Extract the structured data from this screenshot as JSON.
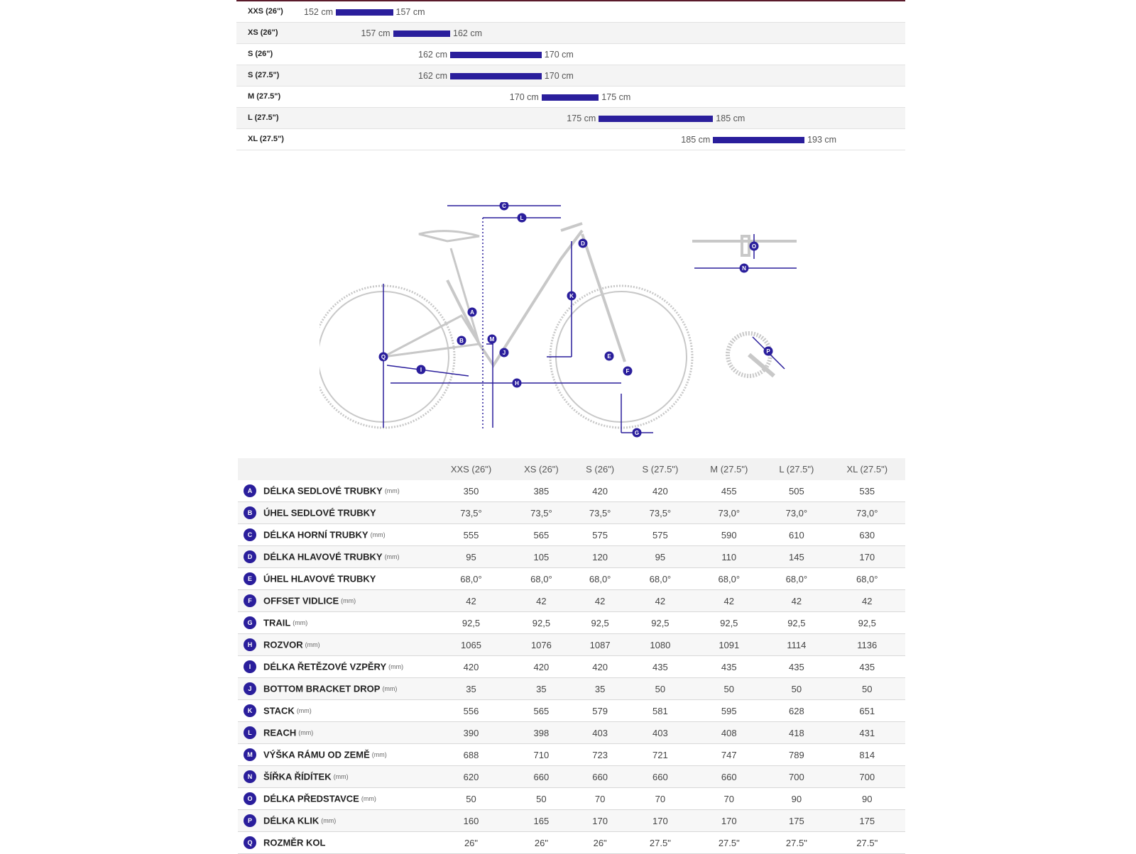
{
  "size_chart": {
    "rows": [
      {
        "size": "XXS (26\")",
        "min": "152 cm",
        "max": "157 cm",
        "min_cm": 152,
        "max_cm": 157
      },
      {
        "size": "XS (26\")",
        "min": "157 cm",
        "max": "162 cm",
        "min_cm": 157,
        "max_cm": 162
      },
      {
        "size": "S (26\")",
        "min": "162 cm",
        "max": "170 cm",
        "min_cm": 162,
        "max_cm": 170
      },
      {
        "size": "S (27.5\")",
        "min": "162 cm",
        "max": "170 cm",
        "min_cm": 162,
        "max_cm": 170
      },
      {
        "size": "M (27.5\")",
        "min": "170 cm",
        "max": "175 cm",
        "min_cm": 170,
        "max_cm": 175
      },
      {
        "size": "L (27.5\")",
        "min": "175 cm",
        "max": "185 cm",
        "min_cm": 175,
        "max_cm": 185
      },
      {
        "size": "XL (27.5\")",
        "min": "185 cm",
        "max": "193 cm",
        "min_cm": 185,
        "max_cm": 193
      }
    ],
    "bar_color": "#2a1e9c"
  },
  "diagram": {
    "markers": [
      "A",
      "B",
      "C",
      "D",
      "E",
      "F",
      "G",
      "H",
      "I",
      "J",
      "K",
      "L",
      "M",
      "N",
      "O",
      "P",
      "Q"
    ],
    "marker_color": "#2a1e9c"
  },
  "geometry_table": {
    "headers": [
      "XXS (26\")",
      "XS (26\")",
      "S (26\")",
      "S (27.5\")",
      "M (27.5\")",
      "L (27.5\")",
      "XL (27.5\")"
    ],
    "rows": [
      {
        "letter": "A",
        "name": "DÉLKA SEDLOVÉ TRUBKY",
        "unit": "(mm)",
        "values": [
          "350",
          "385",
          "420",
          "420",
          "455",
          "505",
          "535"
        ]
      },
      {
        "letter": "B",
        "name": "ÚHEL SEDLOVÉ TRUBKY",
        "unit": "",
        "values": [
          "73,5°",
          "73,5°",
          "73,5°",
          "73,5°",
          "73,0°",
          "73,0°",
          "73,0°"
        ]
      },
      {
        "letter": "C",
        "name": "DÉLKA HORNÍ TRUBKY",
        "unit": "(mm)",
        "values": [
          "555",
          "565",
          "575",
          "575",
          "590",
          "610",
          "630"
        ]
      },
      {
        "letter": "D",
        "name": "DÉLKA HLAVOVÉ TRUBKY",
        "unit": "(mm)",
        "values": [
          "95",
          "105",
          "120",
          "95",
          "110",
          "145",
          "170"
        ]
      },
      {
        "letter": "E",
        "name": "ÚHEL HLAVOVÉ TRUBKY",
        "unit": "",
        "values": [
          "68,0°",
          "68,0°",
          "68,0°",
          "68,0°",
          "68,0°",
          "68,0°",
          "68,0°"
        ]
      },
      {
        "letter": "F",
        "name": "OFFSET VIDLICE",
        "unit": "(mm)",
        "values": [
          "42",
          "42",
          "42",
          "42",
          "42",
          "42",
          "42"
        ]
      },
      {
        "letter": "G",
        "name": "TRAIL",
        "unit": "(mm)",
        "values": [
          "92,5",
          "92,5",
          "92,5",
          "92,5",
          "92,5",
          "92,5",
          "92,5"
        ]
      },
      {
        "letter": "H",
        "name": "ROZVOR",
        "unit": "(mm)",
        "values": [
          "1065",
          "1076",
          "1087",
          "1080",
          "1091",
          "1114",
          "1136"
        ]
      },
      {
        "letter": "I",
        "name": "DÉLKA ŘETĚZOVÉ VZPĚRY",
        "unit": "(mm)",
        "values": [
          "420",
          "420",
          "420",
          "435",
          "435",
          "435",
          "435"
        ]
      },
      {
        "letter": "J",
        "name": "BOTTOM BRACKET DROP",
        "unit": "(mm)",
        "values": [
          "35",
          "35",
          "35",
          "50",
          "50",
          "50",
          "50"
        ]
      },
      {
        "letter": "K",
        "name": "STACK",
        "unit": "(mm)",
        "values": [
          "556",
          "565",
          "579",
          "581",
          "595",
          "628",
          "651"
        ]
      },
      {
        "letter": "L",
        "name": "REACH",
        "unit": "(mm)",
        "values": [
          "390",
          "398",
          "403",
          "403",
          "408",
          "418",
          "431"
        ]
      },
      {
        "letter": "M",
        "name": "VÝŠKA RÁMU OD ZEMĚ",
        "unit": "(mm)",
        "values": [
          "688",
          "710",
          "723",
          "721",
          "747",
          "789",
          "814"
        ]
      },
      {
        "letter": "N",
        "name": "ŠÍŘKA ŘÍDÍTEK",
        "unit": "(mm)",
        "values": [
          "620",
          "660",
          "660",
          "660",
          "660",
          "700",
          "700"
        ]
      },
      {
        "letter": "O",
        "name": "DÉLKA PŘEDSTAVCE",
        "unit": "(mm)",
        "values": [
          "50",
          "50",
          "70",
          "70",
          "70",
          "90",
          "90"
        ]
      },
      {
        "letter": "P",
        "name": "DÉLKA KLIK",
        "unit": "(mm)",
        "values": [
          "160",
          "165",
          "170",
          "170",
          "170",
          "175",
          "175"
        ]
      },
      {
        "letter": "Q",
        "name": "ROZMĚR KOL",
        "unit": "",
        "values": [
          "26\"",
          "26\"",
          "26\"",
          "27.5\"",
          "27.5\"",
          "27.5\"",
          "27.5\""
        ]
      }
    ]
  }
}
